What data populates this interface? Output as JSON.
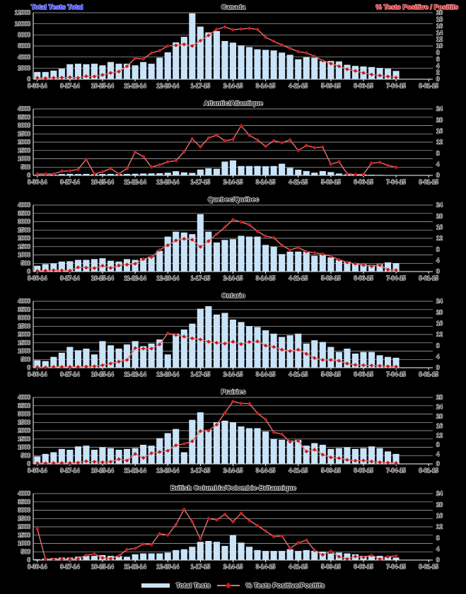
{
  "page": {
    "header_left": "Total Tests Total",
    "header_right": "% Tests Positive / Positifs"
  },
  "legend": {
    "tests_label": "Total Tests",
    "pct_label": "% Tests Positive/Positifs"
  },
  "colors": {
    "background": "#000000",
    "bar_fill": "#c9e3f8",
    "line": "#e57373",
    "marker": "#cc1a1a",
    "grid": "#b8b8b8",
    "axis": "#ffffff",
    "tick_text": "#000000",
    "halo": "#d4d4d4",
    "header_left_color": "#1a1aee",
    "header_left_halo": "#b4c0f8",
    "header_right_color": "#cc0000",
    "header_right_halo": "#f5b4b4"
  },
  "chart_data": {
    "type": "bar+line small multiples (6 panels)",
    "grid": true,
    "legend_position": "bottom",
    "x_tick_labels": [
      "8-30-14",
      "9-27-14",
      "10-25-14",
      "11-22-14",
      "12-20-14",
      "1-17-15",
      "2-14-15",
      "3-14-15",
      "4-11-15",
      "5-09-15",
      "6-06-15",
      "7-04-15",
      "8-01-15"
    ],
    "x_slots": 49,
    "categories": [
      "8-30-14",
      "9-06-14",
      "9-13-14",
      "9-20-14",
      "9-27-14",
      "10-04-14",
      "10-11-14",
      "10-18-14",
      "10-25-14",
      "11-01-14",
      "11-08-14",
      "11-15-14",
      "11-22-14",
      "11-29-14",
      "12-06-14",
      "12-13-14",
      "12-20-14",
      "12-27-14",
      "1-03-15",
      "1-10-15",
      "1-17-15",
      "1-24-15",
      "1-31-15",
      "2-07-15",
      "2-14-15",
      "2-21-15",
      "2-28-15",
      "3-07-15",
      "3-14-15",
      "3-21-15",
      "3-28-15",
      "4-04-15",
      "4-11-15",
      "4-18-15",
      "4-25-15",
      "5-02-15",
      "5-09-15",
      "5-16-15",
      "5-23-15",
      "5-30-15",
      "6-06-15",
      "6-13-15",
      "6-20-15",
      "6-27-15",
      "7-04-15"
    ],
    "charts": [
      {
        "title": "Canada",
        "slug": "canada",
        "left_ylim": [
          0,
          12000
        ],
        "left_step": 2000,
        "right_ylim": [
          0,
          20
        ],
        "right_step": 2,
        "series": [
          {
            "name": "Total Tests",
            "type": "bar",
            "axis": "left",
            "values": [
              1300,
              1300,
              1550,
              1900,
              2700,
              2800,
              2700,
              2800,
              2500,
              3100,
              2800,
              2800,
              2500,
              3100,
              2800,
              3900,
              4850,
              6650,
              7650,
              11900,
              9500,
              8450,
              8700,
              6900,
              6600,
              6100,
              5800,
              5400,
              5300,
              5200,
              4800,
              4400,
              3600,
              4000,
              3900,
              3300,
              3300,
              3200,
              2600,
              2400,
              2300,
              2200,
              2000,
              1900,
              1500
            ]
          },
          {
            "name": "% Tests Positive/Positifs",
            "type": "line",
            "axis": "right",
            "values": [
              0.4,
              0.3,
              0.4,
              0.5,
              0.6,
              0.4,
              0.9,
              0.8,
              1.3,
              1.9,
              2.3,
              3.9,
              6.3,
              6.1,
              7.9,
              8.6,
              10.0,
              10.2,
              10.5,
              10.0,
              11.6,
              13.2,
              15.0,
              15.7,
              14.9,
              15.1,
              15.3,
              15.0,
              12.6,
              11.4,
              10.3,
              9.3,
              8.3,
              7.9,
              6.9,
              5.6,
              4.7,
              3.9,
              3.0,
              2.5,
              1.9,
              1.4,
              1.1,
              0.8,
              0.5
            ]
          }
        ]
      },
      {
        "title": "Atlantic/Atlantique",
        "slug": "atlantic-atlantique",
        "left_ylim": [
          0,
          4000
        ],
        "left_step": 500,
        "right_ylim": [
          0,
          24
        ],
        "right_step": 4,
        "series": [
          {
            "name": "Total Tests",
            "type": "bar",
            "axis": "left",
            "values": [
              30,
              30,
              40,
              80,
              90,
              80,
              90,
              70,
              80,
              90,
              80,
              90,
              100,
              110,
              120,
              130,
              160,
              250,
              180,
              150,
              350,
              430,
              400,
              830,
              900,
              560,
              560,
              560,
              550,
              560,
              700,
              460,
              340,
              260,
              160,
              260,
              200,
              110,
              60,
              60,
              50,
              40,
              30,
              20,
              20
            ]
          },
          {
            "name": "% Tests Positive/Positifs",
            "type": "line",
            "axis": "right",
            "values": [
              0.5,
              0.5,
              0.5,
              1.5,
              1.6,
              2.2,
              5.8,
              0.5,
              1.3,
              2.5,
              0.5,
              2.5,
              8.4,
              6.8,
              3.0,
              3.8,
              4.9,
              5.3,
              8.5,
              13.2,
              10.3,
              13.5,
              14.5,
              12.5,
              13.0,
              17.9,
              14.5,
              12.8,
              10.5,
              12.5,
              11.8,
              12.8,
              9.0,
              10.8,
              10.0,
              10.2,
              4.0,
              4.9,
              0.6,
              0.3,
              0.4,
              4.4,
              4.7,
              3.6,
              2.9
            ]
          }
        ]
      },
      {
        "title": "Quebec/Québec",
        "slug": "quebec",
        "left_ylim": [
          0,
          4000
        ],
        "left_step": 500,
        "right_ylim": [
          0,
          24
        ],
        "right_step": 4,
        "series": [
          {
            "name": "Total Tests",
            "type": "bar",
            "axis": "left",
            "values": [
              350,
              450,
              480,
              600,
              620,
              700,
              700,
              750,
              800,
              650,
              600,
              750,
              700,
              800,
              900,
              1250,
              2100,
              2400,
              2350,
              2250,
              3450,
              2400,
              1750,
              1900,
              1950,
              2150,
              2100,
              2100,
              1600,
              1500,
              1050,
              1200,
              1200,
              1200,
              950,
              1000,
              850,
              700,
              600,
              500,
              450,
              400,
              450,
              550,
              500
            ]
          },
          {
            "name": "% Tests Positive/Positifs",
            "type": "line",
            "axis": "right",
            "values": [
              0.2,
              0.3,
              0.5,
              0.4,
              0.3,
              1.5,
              1.4,
              1.2,
              2.1,
              1.3,
              2.2,
              2.5,
              2.8,
              4.5,
              5.2,
              7.8,
              9.5,
              11.2,
              11.8,
              11.5,
              8.9,
              11.0,
              13.5,
              16.0,
              18.7,
              17.9,
              16.9,
              14.5,
              12.8,
              12.2,
              9.5,
              7.8,
              8.7,
              7.2,
              6.8,
              6.3,
              5.5,
              4.3,
              3.3,
              2.8,
              2.3,
              1.9,
              2.3,
              0.7,
              0.5
            ]
          }
        ]
      },
      {
        "title": "Ontario",
        "slug": "ontario",
        "left_ylim": [
          0,
          4000
        ],
        "left_step": 500,
        "right_ylim": [
          0,
          24
        ],
        "right_step": 4,
        "series": [
          {
            "name": "Total Tests",
            "type": "bar",
            "axis": "left",
            "values": [
              450,
              400,
              650,
              900,
              1250,
              1050,
              1150,
              800,
              1600,
              1350,
              1150,
              1400,
              1600,
              1300,
              1450,
              1700,
              800,
              2050,
              2300,
              2650,
              3550,
              3700,
              3200,
              3300,
              2900,
              2750,
              2500,
              2450,
              2250,
              2050,
              1850,
              1950,
              2050,
              1450,
              1650,
              1550,
              1250,
              950,
              1150,
              850,
              950,
              950,
              750,
              650,
              600
            ]
          },
          {
            "name": "% Tests Positive/Positifs",
            "type": "line",
            "axis": "right",
            "values": [
              0.2,
              0.1,
              0.3,
              0.3,
              0.3,
              0.3,
              0.4,
              0.5,
              0.9,
              1.5,
              2.2,
              2.8,
              7.1,
              6.9,
              6.9,
              8.4,
              12.4,
              11.8,
              11.2,
              10.6,
              10.2,
              9.4,
              9.0,
              8.7,
              9.4,
              8.5,
              9.3,
              9.5,
              8.0,
              7.5,
              6.5,
              6.0,
              6.5,
              5.0,
              3.5,
              2.8,
              2.8,
              2.5,
              1.5,
              1.0,
              0.9,
              0.8,
              0.7,
              0.5,
              0.4
            ]
          }
        ]
      },
      {
        "title": "Prairies",
        "slug": "prairies",
        "left_ylim": [
          0,
          4000
        ],
        "left_step": 500,
        "right_ylim": [
          0,
          28
        ],
        "right_step": 4,
        "series": [
          {
            "name": "Total Tests",
            "type": "bar",
            "axis": "left",
            "values": [
              450,
              600,
              700,
              900,
              850,
              1050,
              1100,
              850,
              1000,
              950,
              850,
              900,
              950,
              1150,
              1100,
              1550,
              1850,
              2100,
              700,
              2650,
              3100,
              2050,
              2500,
              2600,
              2500,
              2250,
              2150,
              2150,
              1950,
              1500,
              1450,
              1400,
              1450,
              1100,
              1250,
              1150,
              900,
              950,
              1000,
              900,
              950,
              1050,
              950,
              750,
              600
            ]
          },
          {
            "name": "% Tests Positive/Positifs",
            "type": "line",
            "axis": "right",
            "values": [
              0.3,
              0.3,
              0.4,
              0.4,
              0.4,
              0.5,
              1.1,
              0.9,
              0.7,
              0.9,
              2.0,
              1.4,
              4.2,
              2.5,
              4.5,
              5.0,
              5.5,
              7.8,
              8.5,
              9.5,
              13.8,
              14.0,
              16.5,
              21.5,
              26.3,
              25.5,
              25.4,
              21.3,
              18.7,
              13.3,
              12.5,
              9.3,
              9.7,
              5.2,
              6.0,
              3.9,
              2.7,
              2.4,
              1.7,
              1.3,
              1.4,
              1.0,
              0.7,
              0.5,
              0.4
            ]
          }
        ]
      },
      {
        "title": "British Columbia/Colombie-Britannique",
        "slug": "british-columbia",
        "left_ylim": [
          0,
          4000
        ],
        "left_step": 500,
        "right_ylim": [
          0,
          24
        ],
        "right_step": 4,
        "series": [
          {
            "name": "Total Tests",
            "type": "bar",
            "axis": "left",
            "values": [
              50,
              100,
              120,
              150,
              150,
              200,
              250,
              250,
              300,
              250,
              250,
              200,
              350,
              400,
              400,
              400,
              450,
              600,
              650,
              800,
              1100,
              1150,
              1100,
              850,
              1500,
              1050,
              800,
              600,
              550,
              550,
              550,
              650,
              550,
              600,
              550,
              500,
              400,
              450,
              400,
              350,
              250,
              250,
              250,
              200,
              150
            ]
          },
          {
            "name": "% Tests Positive/Positifs",
            "type": "line",
            "axis": "right",
            "values": [
              11.2,
              0.3,
              0.3,
              0.3,
              0.3,
              0.4,
              1.8,
              2.2,
              0.8,
              0.5,
              1.5,
              3.8,
              4.2,
              5.8,
              5.6,
              9.5,
              9.0,
              12.8,
              18.3,
              13.9,
              7.6,
              15.0,
              14.5,
              16.5,
              13.8,
              16.9,
              14.3,
              12.4,
              10.5,
              8.5,
              8.7,
              4.2,
              6.2,
              7.2,
              3.5,
              1.9,
              3.2,
              1.2,
              0.4,
              1.3,
              1.0,
              1.7,
              0.3,
              1.2,
              1.5
            ]
          }
        ]
      }
    ]
  }
}
